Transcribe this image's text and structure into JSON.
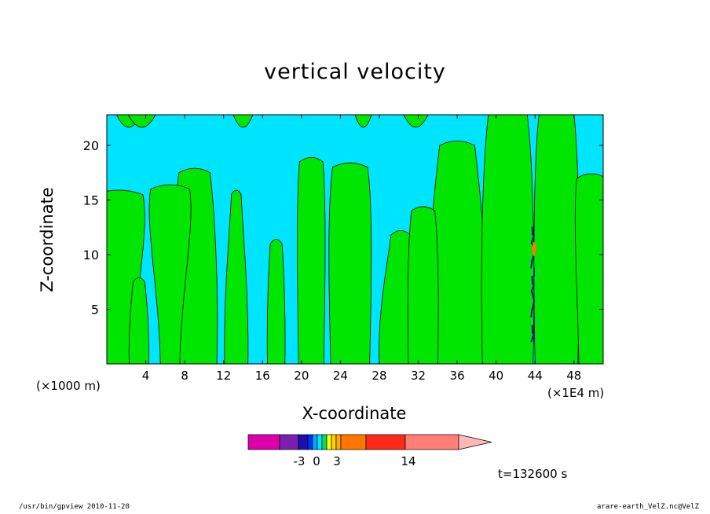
{
  "chart_data": {
    "type": "heatmap",
    "title": "vertical velocity",
    "xlabel": "X-coordinate",
    "ylabel": "Z-coordinate",
    "x_unit_label": "(×1000 m)",
    "x_extra_label": "(×1E4 m)",
    "x_ticks": [
      4,
      8,
      12,
      16,
      20,
      24,
      28,
      32,
      36,
      40,
      44,
      48
    ],
    "y_ticks": [
      5,
      10,
      15,
      20
    ],
    "xlim": [
      0,
      51
    ],
    "ylim": [
      0,
      22.8
    ],
    "colorbar": {
      "tick_labels": [
        "-3",
        "0",
        "3",
        "14"
      ],
      "colors": [
        "#dd00aa",
        "#7a1fb0",
        "#1a10b0",
        "#0030ff",
        "#00aaff",
        "#00e5ff",
        "#00e060",
        "#ffff00",
        "#ffd000",
        "#ffaa00",
        "#ff7700",
        "#ff2a1a",
        "#ff7f76",
        "#ffb8b8"
      ]
    },
    "field_colors": {
      "background": "#00e5ff",
      "positive": "#00e600",
      "strong": "#1a10b0",
      "peak": "#ff7700"
    }
  },
  "annotations": {
    "time": "t=132600 s",
    "footer_left": "/usr/bin/gpview   2010-11-20",
    "footer_right": "arare-earth_VelZ.nc@VelZ"
  }
}
